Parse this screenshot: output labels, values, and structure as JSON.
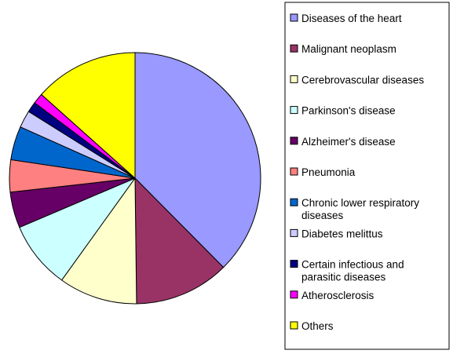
{
  "chart_data": {
    "type": "pie",
    "title": "",
    "legend_position": "right",
    "series": [
      {
        "name": "",
        "slices": [
          {
            "label": "Diseases of the heart",
            "label_lines": [
              "Diseases of the heart"
            ],
            "value": 39.0,
            "color": "#9999FF"
          },
          {
            "label": "Malignant neoplasm",
            "label_lines": [
              "Malignant neoplasm"
            ],
            "value": 12.7,
            "color": "#993366"
          },
          {
            "label": "Cerebrovascular diseases",
            "label_lines": [
              "Cerebrovascular diseases"
            ],
            "value": 10.5,
            "color": "#FFFFCC"
          },
          {
            "label": "Parkinson's disease",
            "label_lines": [
              "Parkinson's disease"
            ],
            "value": 9.0,
            "color": "#CCFFFF"
          },
          {
            "label": "Alzheimer's disease",
            "label_lines": [
              "Alzheimer's disease"
            ],
            "value": 4.8,
            "color": "#660066"
          },
          {
            "label": "Pneumonia",
            "label_lines": [
              "Pneumonia"
            ],
            "value": 4.3,
            "color": "#FF8080"
          },
          {
            "label": "Chronic lower respiratory diseases",
            "label_lines": [
              "Chronic lower respiratory",
              "diseases"
            ],
            "value": 4.5,
            "color": "#0066CC"
          },
          {
            "label": "Diabetes melittus",
            "label_lines": [
              "Diabetes melittus"
            ],
            "value": 2.3,
            "color": "#CCCCFF"
          },
          {
            "label": "Certain infectious and parasitic diseases",
            "label_lines": [
              "Certain infectious and",
              "parasitic diseases"
            ],
            "value": 1.4,
            "color": "#000080"
          },
          {
            "label": "Atherosclerosis",
            "label_lines": [
              "Atherosclerosis"
            ],
            "value": 1.4,
            "color": "#FF00FF"
          },
          {
            "label": "Others",
            "label_lines": [
              "Others"
            ],
            "value": 13.9,
            "color": "#FFFF00"
          }
        ]
      }
    ]
  }
}
